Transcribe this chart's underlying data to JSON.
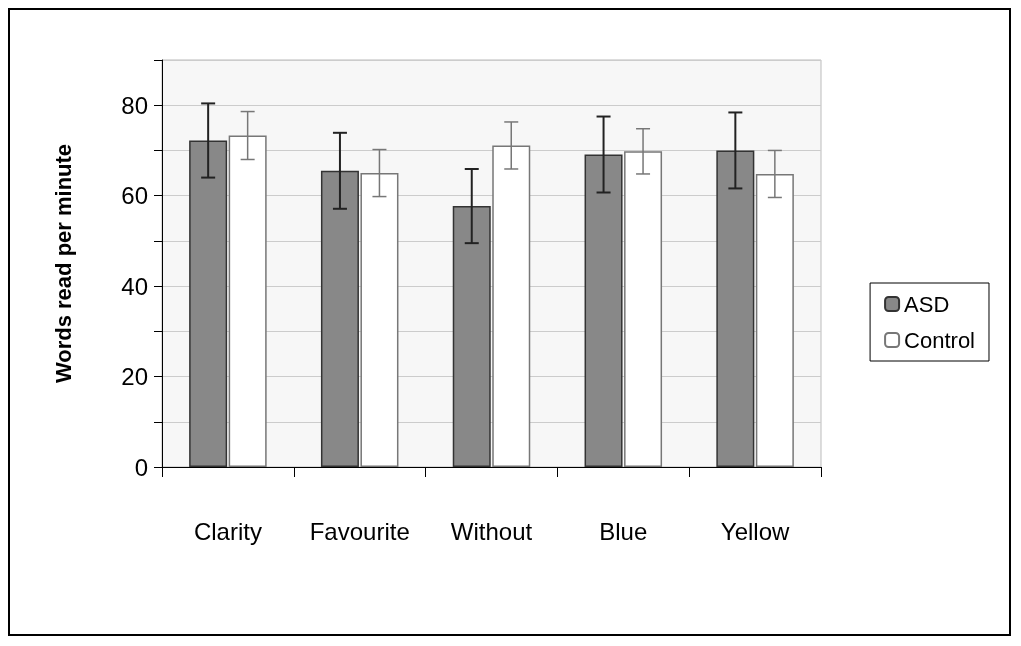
{
  "chart_data": {
    "type": "bar",
    "ylabel": "Words read per minute",
    "categories": [
      "Clarity",
      "Favourite",
      "Without",
      "Blue",
      "Yellow"
    ],
    "series": [
      {
        "name": "ASD",
        "color": "#888888",
        "values": [
          72.2,
          65.5,
          57.7,
          69.1,
          70.0
        ],
        "errors": [
          8.2,
          8.4,
          8.2,
          8.4,
          8.4
        ]
      },
      {
        "name": "Control",
        "color": "#ffffff",
        "values": [
          73.3,
          65.0,
          71.1,
          69.8,
          64.8
        ],
        "errors": [
          5.3,
          5.2,
          5.2,
          5.0,
          5.2
        ]
      }
    ],
    "ylim": [
      0,
      90
    ],
    "yticks": [
      0,
      {
        "value": 10,
        "label": null
      },
      20,
      {
        "value": 30,
        "label": null
      },
      40,
      {
        "value": 50,
        "label": null
      },
      60,
      {
        "value": 70,
        "label": null
      },
      80,
      {
        "value": 90,
        "label": null
      }
    ],
    "grid": "y",
    "legend": "right"
  }
}
